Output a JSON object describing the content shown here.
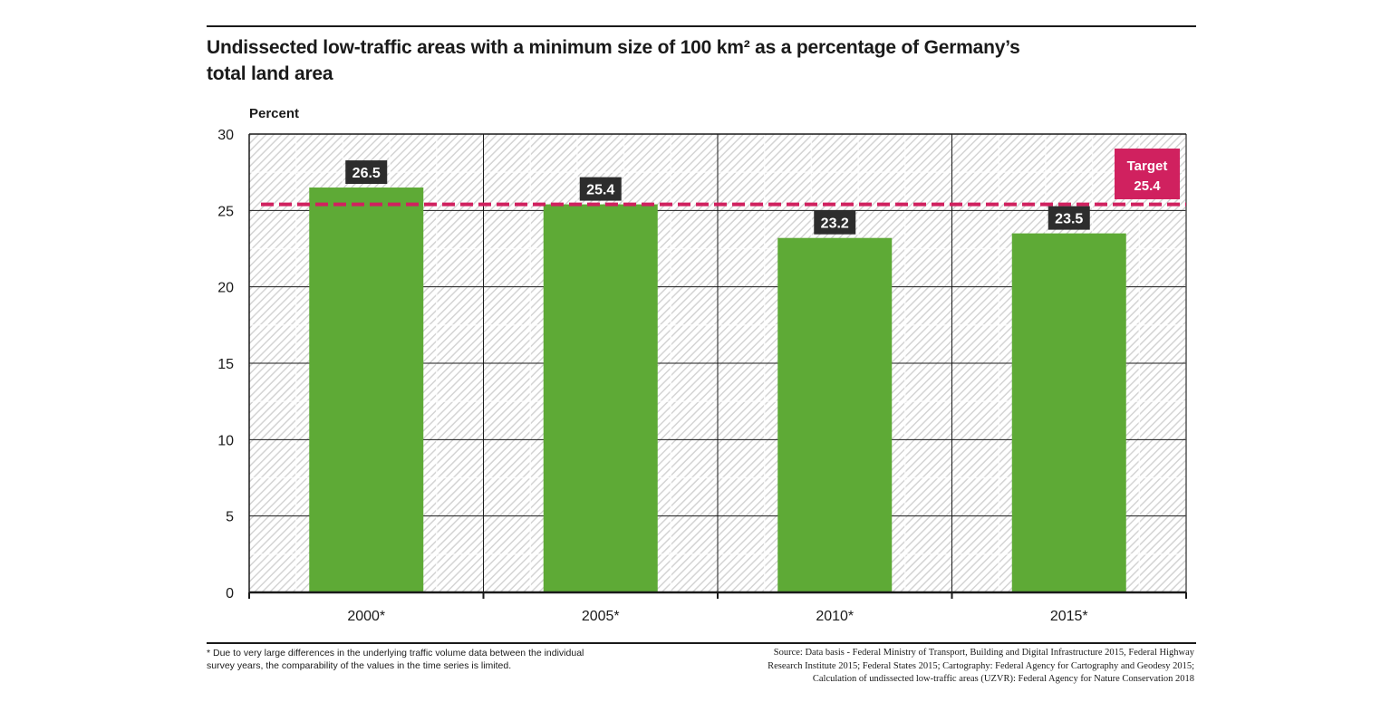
{
  "chart_data": {
    "type": "bar",
    "title": "Undissected low-traffic areas with a minimum size of 100 km² as a percentage of Germany’s total land area",
    "title_lines": [
      "Undissected low-traffic areas with a minimum size of 100 km² as a percentage of Germany’s",
      "total land area"
    ],
    "xlabel": "",
    "ylabel": "Percent",
    "categories": [
      "2000*",
      "2005*",
      "2010*",
      "2015*"
    ],
    "values": [
      26.5,
      25.4,
      23.2,
      23.5
    ],
    "data_labels": [
      "26.5",
      "25.4",
      "23.2",
      "23.5"
    ],
    "ylim": [
      0,
      30
    ],
    "yticks": [
      0,
      5,
      10,
      15,
      20,
      25,
      30
    ],
    "ytick_labels": [
      "0",
      "5",
      "10",
      "15",
      "20",
      "25",
      "30"
    ],
    "grid": true,
    "target": {
      "value": 25.4,
      "label_line1": "Target",
      "label_line2": "25.4",
      "placement": "top-right"
    },
    "colors": {
      "bar": "#5eaa36",
      "label_box": "#2d2d2d",
      "target": "#d0215f",
      "hatch": "#d4d4d4"
    }
  },
  "footnote": {
    "lines": [
      "* Due to very large differences in the underlying traffic volume data between the individual",
      "survey years, the comparability of the values in the time series is limited."
    ]
  },
  "source": {
    "lines": [
      "Source: Data basis - Federal Ministry of Transport, Building and Digital Infrastructure 2015, Federal Highway",
      "Research Institute 2015; Federal States 2015; Cartography: Federal Agency for Cartography and Geodesy 2015;",
      "Calculation of undissected low-traffic areas (UZVR): Federal Agency for Nature Conservation 2018"
    ]
  }
}
